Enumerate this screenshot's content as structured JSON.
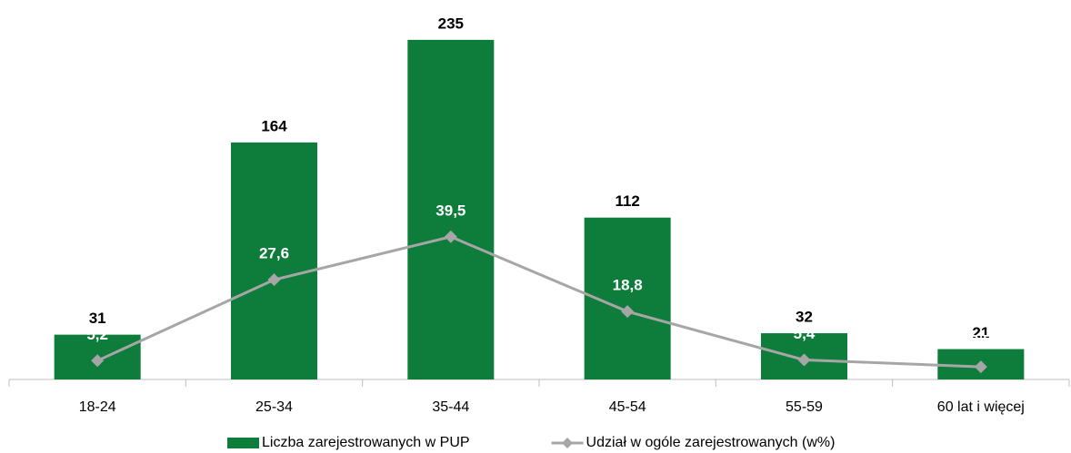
{
  "chart_data": {
    "type": "bar",
    "categories": [
      "18-24",
      "25-34",
      "35-44",
      "45-54",
      "55-59",
      "60 lat i więcej"
    ],
    "series": [
      {
        "name": "Liczba zarejestrowanych w PUP",
        "type": "bar",
        "color": "#0e7c3b",
        "values": [
          31,
          164,
          235,
          112,
          32,
          21
        ]
      },
      {
        "name": "Udział w ogóle zarejestrowanych (w%)",
        "type": "line",
        "axis": "y2",
        "color": "#a6a6a6",
        "values": [
          5.2,
          27.6,
          39.5,
          18.8,
          5.4,
          3.5
        ],
        "value_labels": [
          "5,2",
          "27,6",
          "39,5",
          "18,8",
          "5,4",
          "3,5"
        ]
      }
    ],
    "ylim": [
      0,
      250
    ],
    "y2lim": [
      0,
      100
    ],
    "legend": "bottom"
  }
}
